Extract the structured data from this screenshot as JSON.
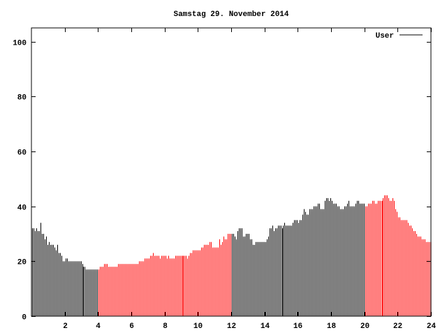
{
  "chart_data": {
    "type": "bar",
    "title": "Samstag 29. November 2014",
    "xlabel": "",
    "ylabel": "",
    "xlim": [
      0,
      24
    ],
    "ylim": [
      0,
      105
    ],
    "x_ticks": [
      2,
      4,
      6,
      8,
      10,
      12,
      14,
      16,
      18,
      20,
      22,
      24
    ],
    "y_ticks": [
      0,
      20,
      40,
      60,
      80,
      100
    ],
    "interval_minutes": 5,
    "grid": false,
    "legend_position": "top-right",
    "series": [
      {
        "name": "User",
        "values": [
          32,
          32,
          31,
          32,
          31,
          31,
          34,
          30,
          30,
          28,
          29,
          26,
          27,
          26,
          26,
          26,
          25,
          24,
          26,
          23,
          23,
          22,
          20,
          20,
          21,
          21,
          20,
          20,
          20,
          20,
          20,
          20,
          20,
          20,
          20,
          20,
          19,
          18,
          18,
          17,
          17,
          17,
          17,
          17,
          17,
          17,
          17,
          17,
          17,
          18,
          18,
          18,
          19,
          19,
          19,
          18,
          18,
          18,
          18,
          18,
          18,
          18,
          19,
          19,
          19,
          19,
          19,
          19,
          19,
          19,
          19,
          19,
          19,
          19,
          19,
          19,
          19,
          20,
          20,
          20,
          20,
          21,
          21,
          21,
          21,
          22,
          22,
          23,
          22,
          22,
          22,
          22,
          21,
          22,
          22,
          22,
          22,
          21,
          22,
          21,
          21,
          21,
          21,
          22,
          22,
          22,
          22,
          22,
          22,
          22,
          22,
          22,
          21,
          22,
          23,
          23,
          24,
          24,
          24,
          24,
          24,
          24,
          25,
          25,
          26,
          26,
          26,
          26,
          27,
          27,
          25,
          25,
          25,
          25,
          25,
          28,
          26,
          27,
          29,
          28,
          28,
          30,
          30,
          30,
          30,
          30,
          29,
          28,
          31,
          32,
          32,
          32,
          29,
          29,
          30,
          30,
          30,
          28,
          28,
          26,
          26,
          27,
          27,
          27,
          27,
          27,
          27,
          27,
          27,
          28,
          29,
          32,
          32,
          33,
          31,
          32,
          32,
          33,
          33,
          33,
          32,
          33,
          34,
          33,
          33,
          33,
          33,
          33,
          34,
          35,
          35,
          35,
          34,
          35,
          35,
          37,
          39,
          38,
          37,
          37,
          39,
          39,
          39,
          40,
          40,
          40,
          41,
          41,
          39,
          39,
          39,
          42,
          43,
          43,
          42,
          43,
          42,
          41,
          41,
          41,
          40,
          40,
          39,
          39,
          39,
          40,
          40,
          41,
          42,
          40,
          40,
          40,
          40,
          41,
          42,
          42,
          41,
          41,
          41,
          41,
          40,
          40,
          41,
          41,
          41,
          42,
          42,
          41,
          41,
          42,
          42,
          42,
          42,
          43,
          44,
          44,
          44,
          43,
          42,
          42,
          43,
          42,
          39,
          38,
          36,
          36,
          35,
          35,
          35,
          35,
          35,
          34,
          33,
          33,
          32,
          31,
          31,
          30,
          29,
          29,
          29,
          28,
          28,
          28,
          27,
          27,
          27,
          27
        ]
      }
    ],
    "highlight_ranges_hours": [
      [
        4,
        12
      ],
      [
        20,
        24
      ]
    ],
    "colors": {
      "normal": "#000000",
      "highlight": "#ff0000",
      "legend_line": "#000000"
    }
  }
}
